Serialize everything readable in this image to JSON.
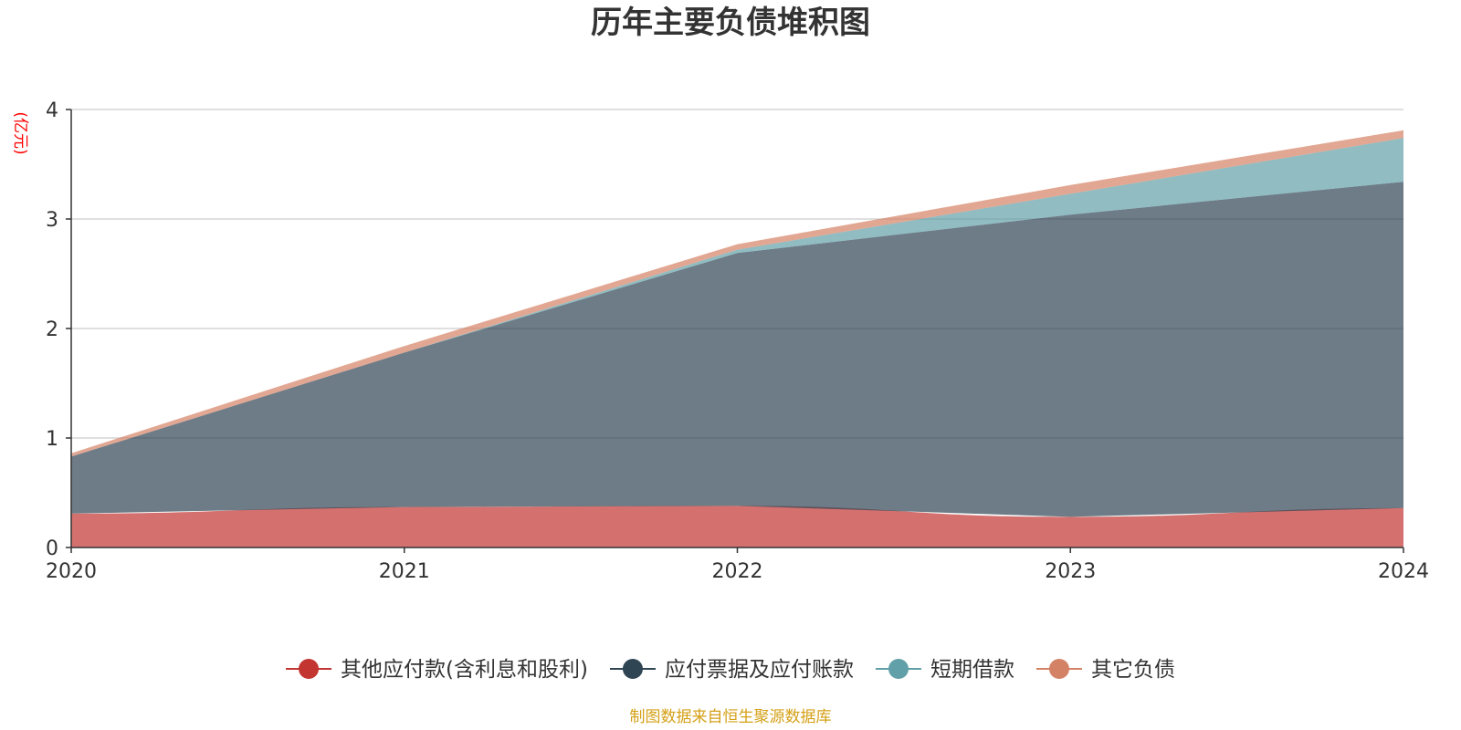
{
  "chart_data": {
    "type": "area",
    "stacked": true,
    "title": "历年主要负债堆积图",
    "unit_label": "(亿元)",
    "x": [
      "2020",
      "2021",
      "2022",
      "2023",
      "2024"
    ],
    "ylim": [
      0,
      4
    ],
    "yticks": [
      "0",
      "1",
      "2",
      "3",
      "4"
    ],
    "grid": true,
    "legend_position": "bottom",
    "series": [
      {
        "name": "其他应付款(含利息和股利)",
        "values": [
          0.31,
          0.37,
          0.38,
          0.28,
          0.36
        ],
        "color": "#c23531"
      },
      {
        "name": "应付票据及应付账款",
        "values": [
          0.52,
          1.41,
          2.31,
          2.76,
          2.98
        ],
        "color": "#2f4554"
      },
      {
        "name": "短期借款",
        "values": [
          0.0,
          0.0,
          0.03,
          0.19,
          0.4
        ],
        "color": "#61a0a8"
      },
      {
        "name": "其它负债",
        "values": [
          0.03,
          0.06,
          0.05,
          0.08,
          0.07
        ],
        "color": "#d48265"
      }
    ],
    "source": "制图数据来自恒生聚源数据库",
    "colors": {
      "unit": "#ff0000",
      "source": "#d4a017",
      "grid": "#cccccc",
      "axis": "#333333"
    }
  }
}
